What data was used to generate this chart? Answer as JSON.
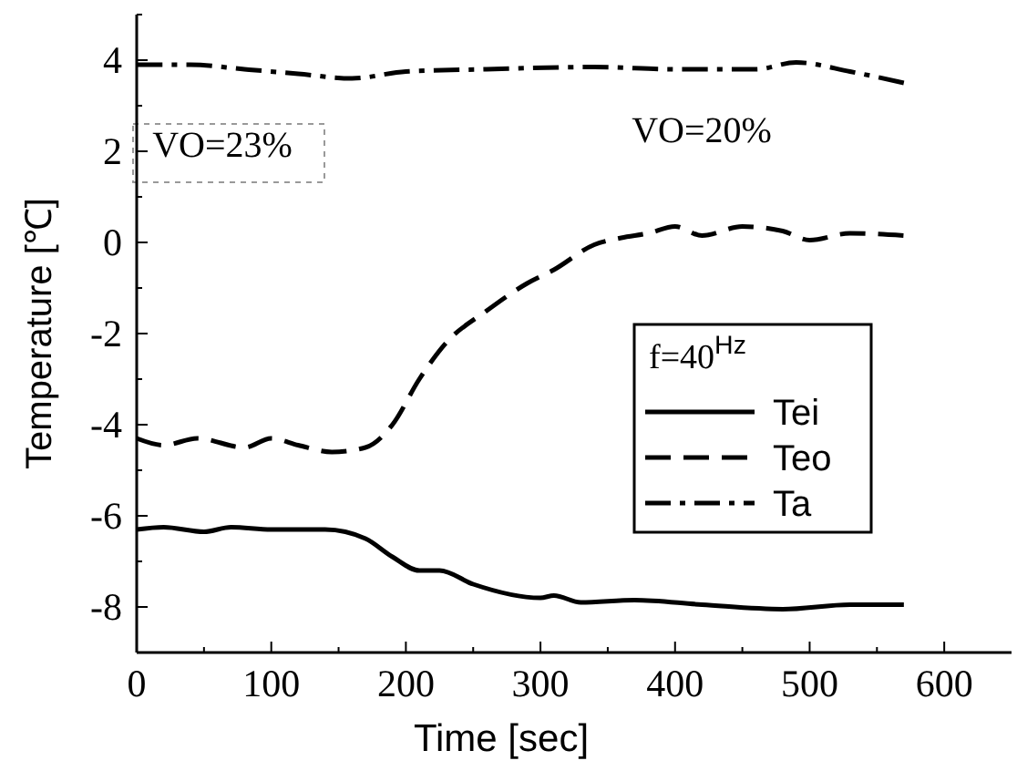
{
  "chart_data": {
    "type": "line",
    "xlabel": "Time [sec]",
    "ylabel": "Temperature [℃]",
    "legend_title": "f=40$^{Hz}$",
    "legend": "right",
    "xlim": [
      0,
      650
    ],
    "ylim": [
      -9,
      5
    ],
    "xticks": [
      0,
      {
        "value": 50,
        "label": null
      },
      100,
      {
        "value": 150,
        "label": null
      },
      200,
      {
        "value": 250,
        "label": null
      },
      300,
      {
        "value": 350,
        "label": null
      },
      400,
      {
        "value": 450,
        "label": null
      },
      500,
      {
        "value": 550,
        "label": null
      },
      600
    ],
    "yticks": [
      {
        "value": -9,
        "label": null
      },
      -8,
      {
        "value": -7,
        "label": null
      },
      -6,
      {
        "value": -5,
        "label": null
      },
      -4,
      {
        "value": -3,
        "label": null
      },
      -2,
      {
        "value": -1,
        "label": null
      },
      0,
      {
        "value": 1,
        "label": null
      },
      2,
      {
        "value": 3,
        "label": null
      },
      4,
      {
        "value": 5,
        "label": null
      }
    ],
    "annotations": [
      "VO=23%",
      "VO=20%"
    ],
    "series": [
      {
        "name": "Tei",
        "color": "#000000",
        "line_style": "solid",
        "x": [
          0,
          20,
          50,
          70,
          100,
          140,
          170,
          190,
          210,
          225,
          250,
          300,
          310,
          330,
          370,
          420,
          480,
          530,
          570
        ],
        "values": [
          -6.3,
          -6.25,
          -6.35,
          -6.25,
          -6.3,
          -6.3,
          -6.5,
          -6.9,
          -7.2,
          -7.2,
          -7.5,
          -7.8,
          -7.75,
          -7.9,
          -7.85,
          -7.95,
          -8.05,
          -7.95,
          -7.95
        ]
      },
      {
        "name": "Teo",
        "color": "#000000",
        "line_style": "dashed",
        "x": [
          0,
          20,
          45,
          80,
          100,
          120,
          145,
          170,
          190,
          210,
          230,
          260,
          290,
          310,
          340,
          360,
          380,
          400,
          420,
          450,
          480,
          500,
          530,
          570
        ],
        "values": [
          -4.3,
          -4.45,
          -4.3,
          -4.5,
          -4.3,
          -4.45,
          -4.6,
          -4.5,
          -4,
          -3,
          -2.2,
          -1.5,
          -0.9,
          -0.6,
          -0.05,
          0.1,
          0.2,
          0.35,
          0.15,
          0.35,
          0.25,
          0.05,
          0.2,
          0.15
        ]
      },
      {
        "name": "Ta",
        "color": "#000000",
        "line_style": "dashdot",
        "x": [
          0,
          40,
          80,
          120,
          160,
          200,
          260,
          340,
          400,
          460,
          490,
          530,
          570
        ],
        "values": [
          3.9,
          3.9,
          3.8,
          3.7,
          3.6,
          3.75,
          3.8,
          3.85,
          3.8,
          3.8,
          3.95,
          3.75,
          3.5
        ]
      }
    ]
  }
}
